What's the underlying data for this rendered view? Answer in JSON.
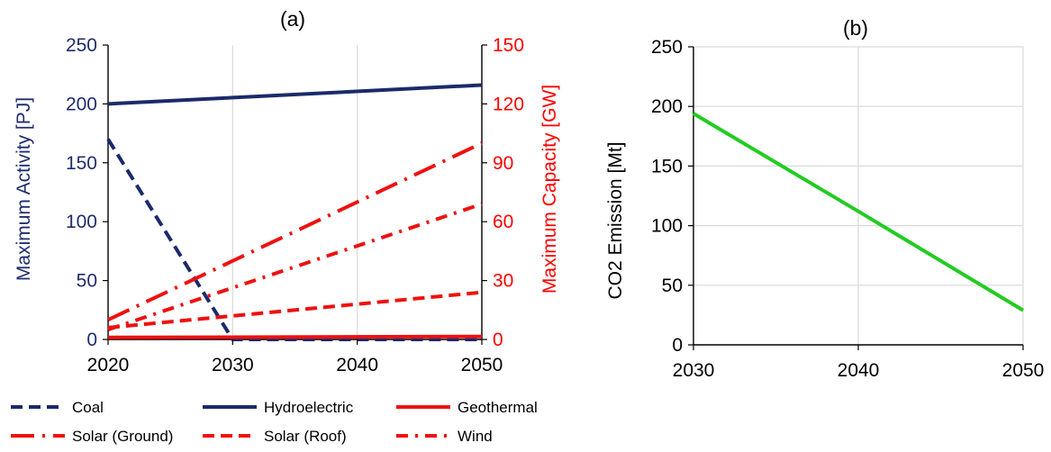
{
  "chart_data": [
    {
      "type": "line",
      "title": "(a)",
      "xlim": [
        2020,
        2050
      ],
      "x_ticks": [
        2020,
        2030,
        2040,
        2050
      ],
      "ylabel_left": "Maximum Activity [PJ]",
      "ylim_left": [
        0,
        250
      ],
      "y_ticks_left": [
        0,
        50,
        100,
        150,
        200,
        250
      ],
      "ylabel_right": "Maximum Capacity [GW]",
      "ylim_right": [
        0,
        150
      ],
      "y_ticks_right": [
        0,
        30,
        60,
        90,
        120,
        150
      ],
      "grid": "vertical",
      "legend_position": "bottom",
      "colors": {
        "left_axis": "#1f2d6e",
        "right_axis": "#ff0000",
        "navy": "#1b2a6b",
        "red": "#ee1111"
      },
      "series": [
        {
          "name": "Coal",
          "axis": "left",
          "style": "dash",
          "color": "#1b2a6b",
          "points": [
            [
              2020,
              170
            ],
            [
              2030,
              0
            ],
            [
              2050,
              0
            ]
          ]
        },
        {
          "name": "Hydroelectric",
          "axis": "left",
          "style": "solid",
          "color": "#1b2a6b",
          "points": [
            [
              2020,
              200
            ],
            [
              2050,
              216
            ]
          ]
        },
        {
          "name": "Geothermal",
          "axis": "right",
          "style": "solid",
          "color": "#ee1111",
          "points": [
            [
              2020,
              1
            ],
            [
              2050,
              1.5
            ]
          ]
        },
        {
          "name": "Solar (Ground)",
          "axis": "right",
          "style": "longdash-dot",
          "color": "#ee1111",
          "points": [
            [
              2020,
              10
            ],
            [
              2050,
              100
            ]
          ]
        },
        {
          "name": "Solar (Roof)",
          "axis": "right",
          "style": "dash",
          "color": "#ee1111",
          "points": [
            [
              2020,
              6
            ],
            [
              2050,
              24
            ]
          ]
        },
        {
          "name": "Wind",
          "axis": "right",
          "style": "dash-dot",
          "color": "#ee1111",
          "points": [
            [
              2020,
              5
            ],
            [
              2050,
              69
            ]
          ]
        }
      ],
      "legend_rows": [
        [
          "Coal",
          "Hydroelectric",
          "Geothermal"
        ],
        [
          "Solar (Ground)",
          "Solar (Roof)",
          "Wind"
        ]
      ]
    },
    {
      "type": "line",
      "title": "(b)",
      "xlim": [
        2030,
        2050
      ],
      "x_ticks": [
        2030,
        2040,
        2050
      ],
      "ylabel": "CO2 Emission [Mt]",
      "ylim": [
        0,
        250
      ],
      "y_ticks": [
        0,
        50,
        100,
        150,
        200,
        250
      ],
      "grid": "both",
      "series": [
        {
          "name": "",
          "style": "solid",
          "color": "#22cc22",
          "points": [
            [
              2030,
              194
            ],
            [
              2040,
              112
            ],
            [
              2050,
              29
            ]
          ]
        }
      ]
    }
  ]
}
